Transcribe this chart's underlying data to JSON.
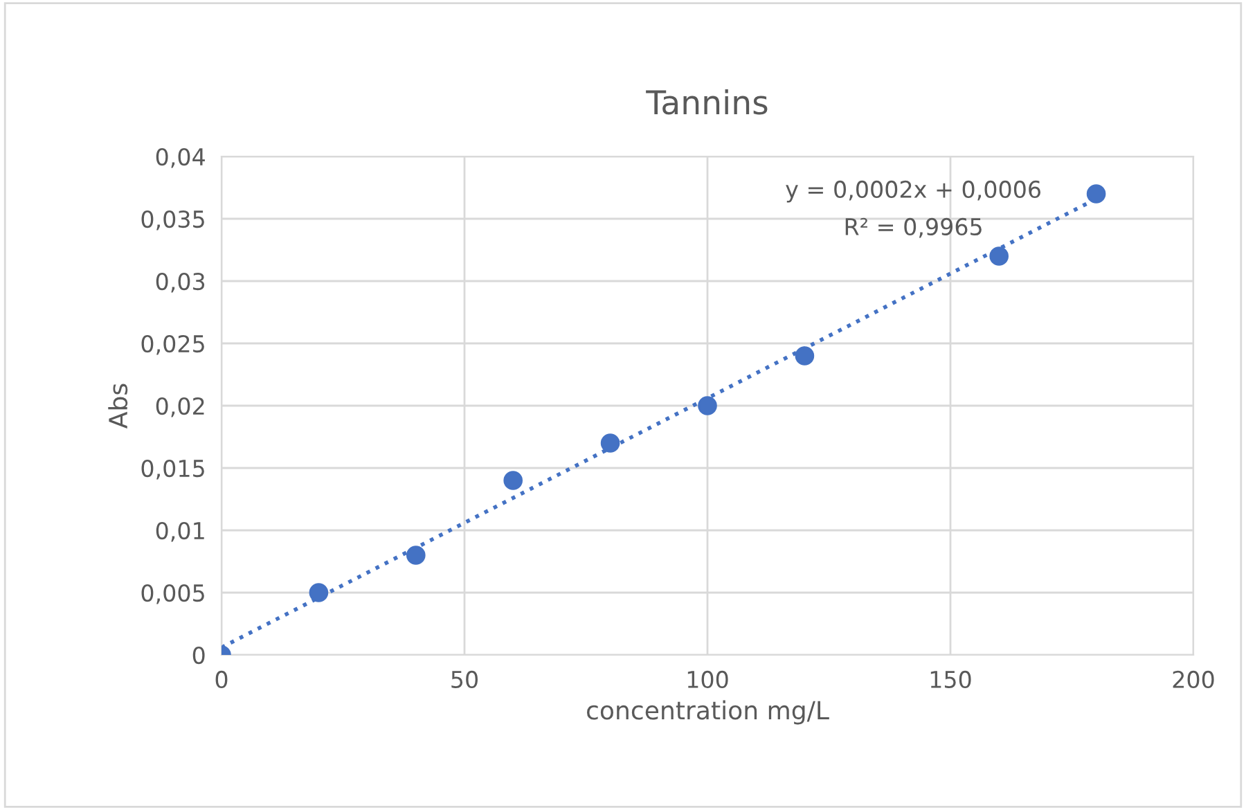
{
  "chart_data": {
    "type": "scatter",
    "title": "Tannins",
    "xlabel": "concentration mg/L",
    "ylabel": "Abs",
    "x": [
      0,
      20,
      40,
      60,
      80,
      100,
      120,
      160,
      180
    ],
    "series": [
      {
        "color": "#4472c4",
        "values": [
          0,
          0.005,
          0.008,
          0.014,
          0.017,
          0.02,
          0.024,
          0.032,
          0.037
        ],
        "marker": "circle"
      },
      {
        "type": "line",
        "color": "#4472c4",
        "x": [
          0,
          180
        ],
        "values": [
          0.0006,
          0.0366
        ],
        "line_style": "dotted",
        "marker": "none"
      }
    ],
    "xlim": [
      0,
      200
    ],
    "xticks": [
      0,
      50,
      100,
      150,
      200
    ],
    "ylim": [
      0,
      0.04
    ],
    "yticks": [
      0,
      {
        "value": 0.005,
        "label": "0,005"
      },
      {
        "value": 0.01,
        "label": "0,01"
      },
      {
        "value": 0.015,
        "label": "0,015"
      },
      {
        "value": 0.02,
        "label": "0,02"
      },
      {
        "value": 0.025,
        "label": "0,025"
      },
      {
        "value": 0.03,
        "label": "0,03"
      },
      {
        "value": 0.035,
        "label": "0,035"
      },
      {
        "value": 0.04,
        "label": "0,04"
      }
    ],
    "grid": true,
    "legend": false,
    "annotations": [
      "y = 0,0002x + 0,0006",
      "R² = 0,9965"
    ]
  }
}
